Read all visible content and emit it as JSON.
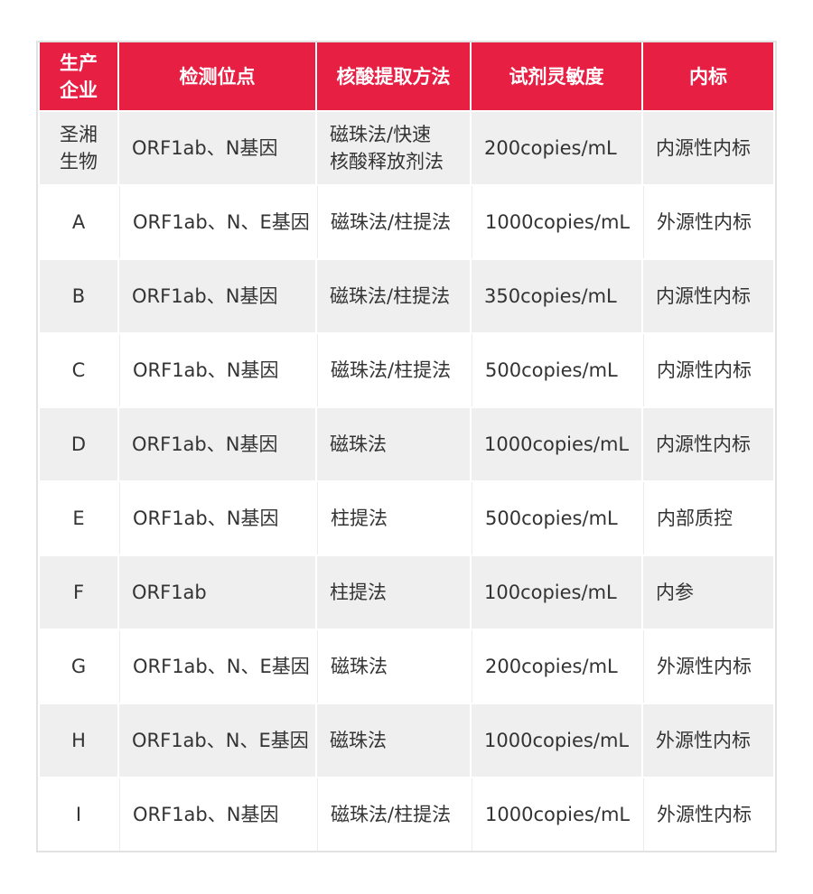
{
  "colors": {
    "header": "#e71f43",
    "stripe": "#efefef",
    "text": "#333333"
  },
  "headers": [
    "生产\n企业",
    "检测位点",
    "核酸提取方法",
    "试剂灵敏度",
    "内标"
  ],
  "rows": [
    [
      "圣湘\n生物",
      "ORF1ab、N基因",
      "磁珠法/快速\n核酸释放剂法",
      "200copies/mL",
      "内源性内标"
    ],
    [
      "A",
      "ORF1ab、N、E基因",
      "磁珠法/柱提法",
      "1000copies/mL",
      "外源性内标"
    ],
    [
      "B",
      "ORF1ab、N基因",
      "磁珠法/柱提法",
      "350copies/mL",
      "内源性内标"
    ],
    [
      "C",
      "ORF1ab、N基因",
      "磁珠法/柱提法",
      "500copies/mL",
      "内源性内标"
    ],
    [
      "D",
      "ORF1ab、N基因",
      "磁珠法",
      "1000copies/mL",
      "内源性内标"
    ],
    [
      "E",
      "ORF1ab、N基因",
      "柱提法",
      "500copies/mL",
      "内部质控"
    ],
    [
      "F",
      "ORF1ab",
      "柱提法",
      "100copies/mL",
      "内参"
    ],
    [
      "G",
      "ORF1ab、N、E基因",
      "磁珠法",
      "200copies/mL",
      "外源性内标"
    ],
    [
      "H",
      "ORF1ab、N、E基因",
      "磁珠法",
      "1000copies/mL",
      "外源性内标"
    ],
    [
      "I",
      "ORF1ab、N基因",
      "磁珠法/柱提法",
      "1000copies/mL",
      "外源性内标"
    ]
  ]
}
